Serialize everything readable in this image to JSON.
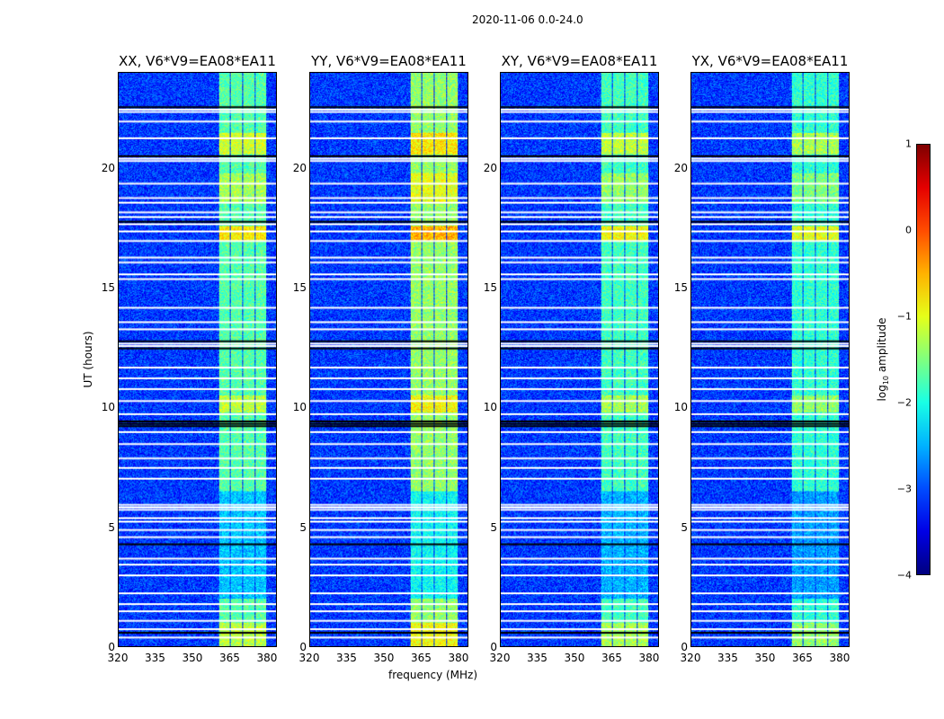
{
  "chart_data": {
    "type": "heatmap",
    "suptitle": "2020-11-06 0.0-24.0",
    "xlabel": "frequency (MHz)",
    "ylabel": "UT (hours)",
    "xlim": [
      320,
      384
    ],
    "ylim": [
      0,
      24
    ],
    "xticks": [
      "320",
      "335",
      "350",
      "365",
      "380"
    ],
    "xtick_values": [
      320,
      335,
      350,
      365,
      380
    ],
    "yticks": [
      "0",
      "5",
      "10",
      "15",
      "20"
    ],
    "ytick_values": [
      0,
      5,
      10,
      15,
      20
    ],
    "panels": [
      {
        "title": "XX, V6*V9=EA08*EA11",
        "band_level": -1.7
      },
      {
        "title": "YY, V6*V9=EA08*EA11",
        "band_level": -1.4
      },
      {
        "title": "XY, V6*V9=EA08*EA11",
        "band_level": -1.8
      },
      {
        "title": "YX, V6*V9=EA08*EA11",
        "band_level": -1.9
      }
    ],
    "background_level": -3.1,
    "rfi_band_mhz": [
      [
        360.5,
        365
      ],
      [
        365.5,
        370
      ],
      [
        370.5,
        375
      ],
      [
        375.5,
        380
      ]
    ],
    "flagged_hours": [
      22.5,
      22.4,
      22.0,
      21.3,
      20.45,
      20.35,
      19.4,
      18.8,
      18.6,
      18.2,
      18.0,
      17.7,
      17.4,
      17.0,
      16.3,
      16.1,
      15.6,
      15.4,
      14.2,
      13.6,
      13.3,
      12.7,
      12.6,
      11.7,
      11.25,
      10.8,
      10.3,
      9.75,
      9.0,
      8.5,
      7.9,
      7.5,
      7.05,
      5.95,
      5.85,
      5.75,
      5.4,
      5.25,
      4.9,
      4.6,
      3.7,
      3.45,
      3.0,
      2.25,
      1.8,
      1.5,
      1.1,
      0.75,
      0.4
    ],
    "dark_hours": [
      22.6,
      20.55,
      17.8,
      12.8,
      12.5,
      9.45,
      9.35,
      9.25,
      4.3,
      0.6
    ],
    "bright_hours": [
      [
        20.6,
        21.5,
        0.6
      ],
      [
        17.0,
        17.6,
        0.9
      ],
      [
        9.8,
        10.5,
        0.5
      ],
      [
        0,
        1.0,
        0.5
      ],
      [
        18.6,
        19.8,
        0.4
      ]
    ],
    "colorbar": {
      "label": "log10 amplitude",
      "label_base": "log",
      "label_sub": "10",
      "label_rest": " amplitude",
      "range": [
        -4,
        1
      ],
      "ticks": [
        "1",
        "0",
        "−1",
        "−2",
        "−3",
        "−4"
      ],
      "tick_values": [
        1,
        0,
        -1,
        -2,
        -3,
        -4
      ]
    }
  }
}
